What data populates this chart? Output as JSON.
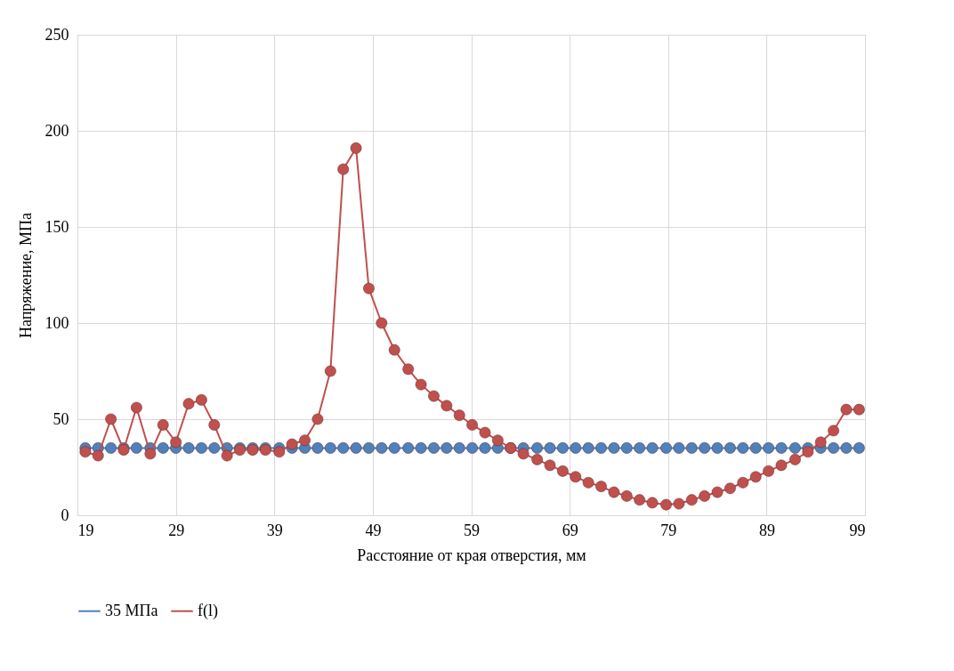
{
  "chart_data": {
    "type": "line",
    "xlabel": "Расстояние от края отверстия, мм",
    "ylabel": "Напряжение, МПа",
    "x": [
      19.8,
      21.1,
      22.4,
      23.7,
      25.0,
      26.4,
      27.7,
      29.0,
      30.3,
      31.6,
      32.9,
      34.2,
      35.5,
      36.8,
      38.1,
      39.5,
      40.8,
      42.1,
      43.4,
      44.7,
      46.0,
      47.3,
      48.6,
      49.9,
      51.2,
      52.6,
      53.9,
      55.2,
      56.5,
      57.8,
      59.1,
      60.4,
      61.7,
      63.0,
      64.3,
      65.7,
      67.0,
      68.3,
      69.6,
      70.9,
      72.2,
      73.5,
      74.8,
      76.1,
      77.4,
      78.8,
      80.1,
      81.4,
      82.7,
      84.0,
      85.3,
      86.6,
      87.9,
      89.2,
      90.5,
      91.9,
      93.2,
      94.5,
      95.8,
      97.1,
      98.4
    ],
    "series": [
      {
        "name": "35 МПа",
        "color": "#4f81bd",
        "values": [
          35,
          35,
          35,
          35,
          35,
          35,
          35,
          35,
          35,
          35,
          35,
          35,
          35,
          35,
          35,
          35,
          35,
          35,
          35,
          35,
          35,
          35,
          35,
          35,
          35,
          35,
          35,
          35,
          35,
          35,
          35,
          35,
          35,
          35,
          35,
          35,
          35,
          35,
          35,
          35,
          35,
          35,
          35,
          35,
          35,
          35,
          35,
          35,
          35,
          35,
          35,
          35,
          35,
          35,
          35,
          35,
          35,
          35,
          35,
          35,
          35
        ]
      },
      {
        "name": "f(l)",
        "color": "#c0504d",
        "values": [
          33,
          31,
          50,
          34,
          56,
          32,
          47,
          38,
          58,
          60,
          47,
          31,
          34,
          34,
          34,
          33,
          37,
          39,
          50,
          75,
          180,
          191,
          118,
          100,
          86,
          76,
          68,
          62,
          57,
          52,
          47,
          43,
          39,
          35,
          32,
          29,
          26,
          23,
          20,
          17,
          15,
          12,
          10,
          8,
          6.5,
          5.5,
          6,
          8,
          10,
          12,
          14,
          17,
          20,
          23,
          26,
          29,
          33,
          38,
          44,
          55,
          55
        ]
      }
    ],
    "xlim": [
      19,
      99
    ],
    "xticks": [
      19,
      29,
      39,
      49,
      59,
      69,
      79,
      89,
      99
    ],
    "ylim": [
      0,
      250
    ],
    "yticks": [
      0,
      50,
      100,
      150,
      200,
      250
    ],
    "grid": true,
    "legend": "bottom",
    "marker": "circle",
    "line_style": "solid"
  }
}
